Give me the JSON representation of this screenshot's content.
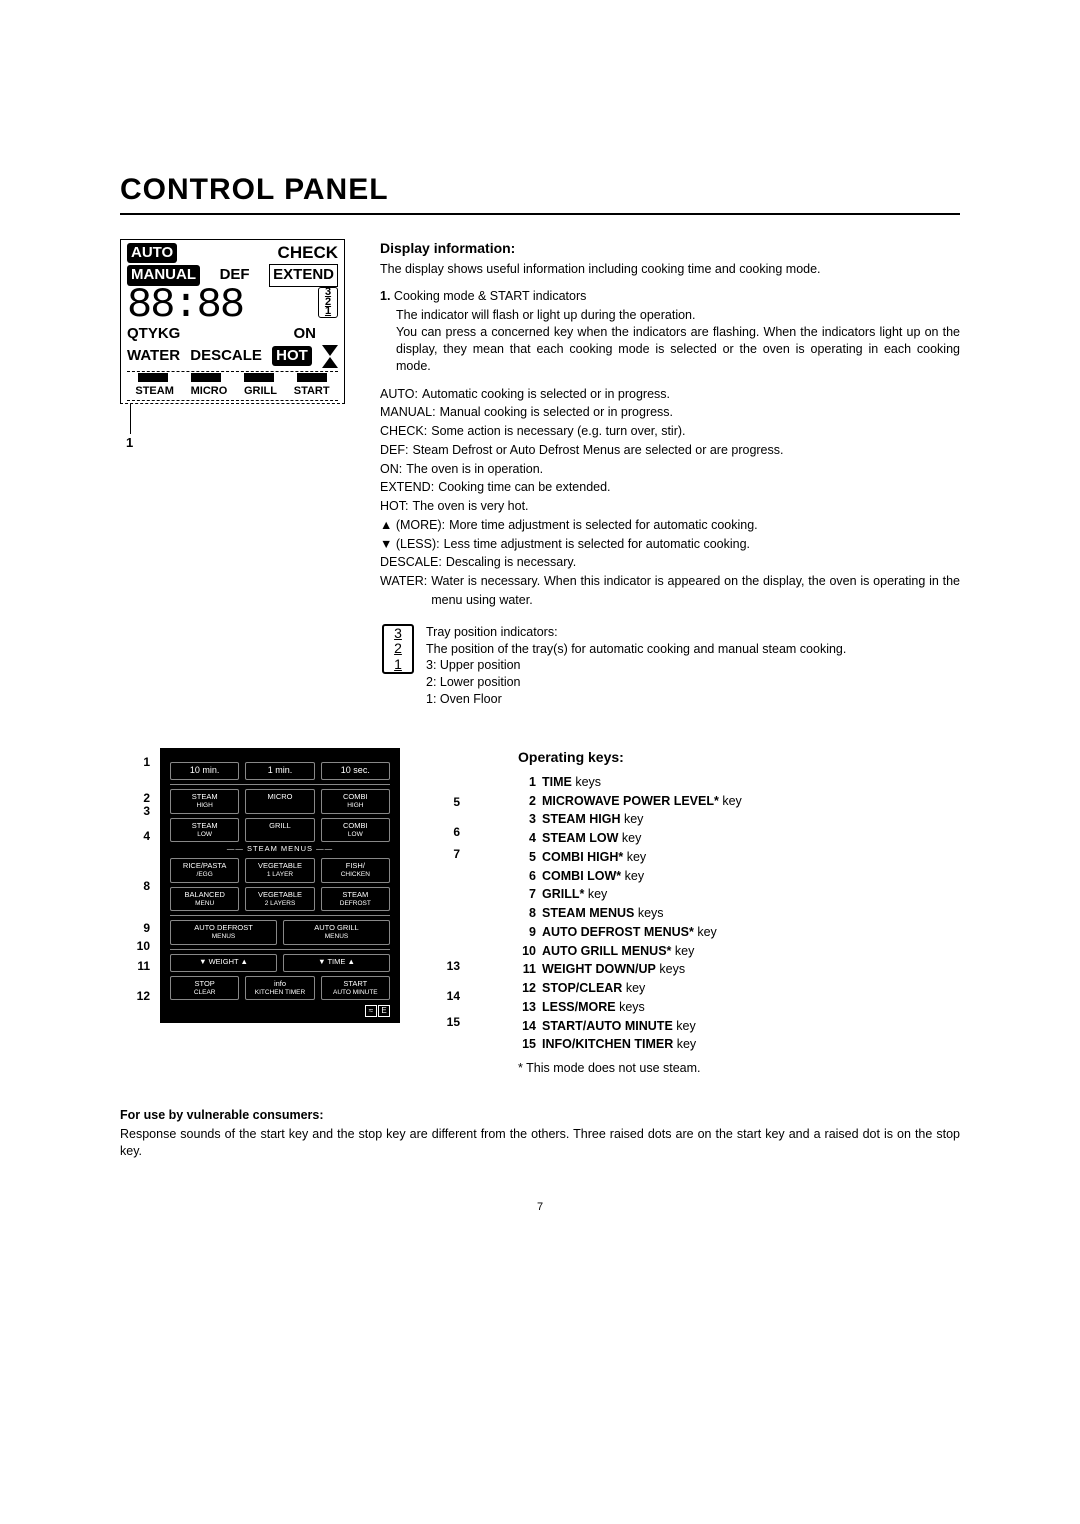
{
  "title": "CONTROL PANEL",
  "pageNumber": "7",
  "display": {
    "row1": {
      "auto": "AUTO",
      "check": "CHECK"
    },
    "row2": {
      "manual": "MANUAL",
      "def": "DEF",
      "extend": "EXTEND"
    },
    "seg": "88:88",
    "tray": {
      "t3": "3",
      "t2": "2",
      "t1": "1"
    },
    "row3": {
      "qty": "QTY",
      "kg": "KG",
      "on": "ON"
    },
    "row4": {
      "water": "WATER",
      "descale": "DESCALE",
      "hot": "HOT"
    },
    "bottom": {
      "steam": "STEAM",
      "micro": "MICRO",
      "grill": "GRILL",
      "start": "START"
    },
    "callout": "1"
  },
  "info": {
    "heading": "Display information:",
    "intro": "The display shows useful information including cooking time and cooking mode.",
    "item1Title": "1.",
    "item1": "Cooking mode & START indicators",
    "item1b": "The indicator will flash or light up during the operation.",
    "item1c": "You can press a concerned key when the indicators are flashing. When the indicators light up on the display, they mean that each cooking mode is selected or the oven is operating in each cooking mode.",
    "statuses": [
      {
        "k": "AUTO:",
        "v": "Automatic cooking is selected or in progress."
      },
      {
        "k": "MANUAL:",
        "v": "Manual cooking is selected or in progress."
      },
      {
        "k": "CHECK:",
        "v": "Some action is necessary (e.g. turn over, stir)."
      },
      {
        "k": "DEF:",
        "v": "Steam Defrost or Auto Defrost Menus are selected or are progress."
      },
      {
        "k": "ON:",
        "v": "The oven is in operation."
      },
      {
        "k": "EXTEND:",
        "v": "Cooking time can be extended."
      },
      {
        "k": "HOT:",
        "v": "The oven is very hot."
      },
      {
        "k": "▲ (MORE):",
        "v": "More time adjustment is selected for automatic cooking."
      },
      {
        "k": "▼ (LESS):",
        "v": "Less time adjustment is selected for automatic cooking."
      },
      {
        "k": "DESCALE:",
        "v": "Descaling is necessary."
      },
      {
        "k": "WATER:",
        "v": "Water is necessary. When this indicator is appeared on the display, the oven is operating in the menu using water."
      }
    ],
    "tray": {
      "l1": "Tray position indicators:",
      "l2": "The position of the tray(s) for automatic cooking and manual steam cooking.",
      "l3": "3: Upper position",
      "l4": "2: Lower position",
      "l5": "1: Oven Floor"
    }
  },
  "keypad": {
    "row1": [
      "10 min.",
      "1 min.",
      "10 sec."
    ],
    "row2": [
      {
        "t": "STEAM",
        "s": "HIGH"
      },
      {
        "t": "MICRO",
        "s": ""
      },
      {
        "t": "COMBI",
        "s": "HIGH"
      }
    ],
    "row3": [
      {
        "t": "STEAM",
        "s": "LOW"
      },
      {
        "t": "GRILL",
        "s": ""
      },
      {
        "t": "COMBI",
        "s": "LOW"
      }
    ],
    "sectionLabel": "STEAM MENUS",
    "row4": [
      {
        "t": "RICE/PASTA",
        "s": "/EGG"
      },
      {
        "t": "VEGETABLE",
        "s": "1 LAYER"
      },
      {
        "t": "FISH/",
        "s": "CHICKEN"
      }
    ],
    "row5": [
      {
        "t": "BALANCED",
        "s": "MENU"
      },
      {
        "t": "VEGETABLE",
        "s": "2 LAYERS"
      },
      {
        "t": "STEAM",
        "s": "DEFROST"
      }
    ],
    "row6": [
      {
        "t": "AUTO DEFROST",
        "s": "MENUS"
      },
      {
        "t": "AUTO GRILL",
        "s": "MENUS"
      }
    ],
    "row7": [
      {
        "t": "▼ WEIGHT ▲"
      },
      {
        "t": "▼ TIME ▲"
      }
    ],
    "row8": [
      {
        "t": "STOP",
        "s": "CLEAR"
      },
      {
        "t": "info",
        "s": "KITCHEN TIMER"
      },
      {
        "t": "START",
        "s": "AUTO MINUTE"
      }
    ],
    "labels": {
      "l1": "1",
      "l2": "2",
      "l3": "3",
      "l4": "4",
      "l5": "5",
      "l6": "6",
      "l7": "7",
      "l8": "8",
      "l9": "9",
      "l10": "10",
      "l11": "11",
      "l12": "12",
      "l13": "13",
      "l14": "14",
      "l15": "15"
    }
  },
  "op": {
    "heading": "Operating keys:",
    "items": [
      {
        "n": "1",
        "b": "TIME",
        "t": " keys"
      },
      {
        "n": "2",
        "b": "MICROWAVE POWER LEVEL*",
        "t": " key"
      },
      {
        "n": "3",
        "b": "STEAM HIGH",
        "t": " key"
      },
      {
        "n": "4",
        "b": "STEAM LOW",
        "t": " key"
      },
      {
        "n": "5",
        "b": "COMBI HIGH*",
        "t": " key"
      },
      {
        "n": "6",
        "b": "COMBI LOW*",
        "t": " key"
      },
      {
        "n": "7",
        "b": "GRILL*",
        "t": " key"
      },
      {
        "n": "8",
        "b": "STEAM MENUS",
        "t": " keys"
      },
      {
        "n": "9",
        "b": "AUTO DEFROST MENUS*",
        "t": " key"
      },
      {
        "n": "10",
        "b": "AUTO GRILL MENUS*",
        "t": " key"
      },
      {
        "n": "11",
        "b": "WEIGHT DOWN/UP",
        "t": " keys"
      },
      {
        "n": "12",
        "b": "STOP/CLEAR",
        "t": " key"
      },
      {
        "n": "13",
        "b": "LESS/MORE",
        "t": " keys"
      },
      {
        "n": "14",
        "b": "START/AUTO MINUTE",
        "t": " key"
      },
      {
        "n": "15",
        "b": "INFO/KITCHEN TIMER",
        "t": " key"
      }
    ],
    "foot": "* This mode does not use steam."
  },
  "footer": {
    "heading": "For use by vulnerable consumers:",
    "text": "Response sounds of the start key and the stop key are different from the others. Three raised dots are on the start key and a raised dot is on the stop key."
  }
}
